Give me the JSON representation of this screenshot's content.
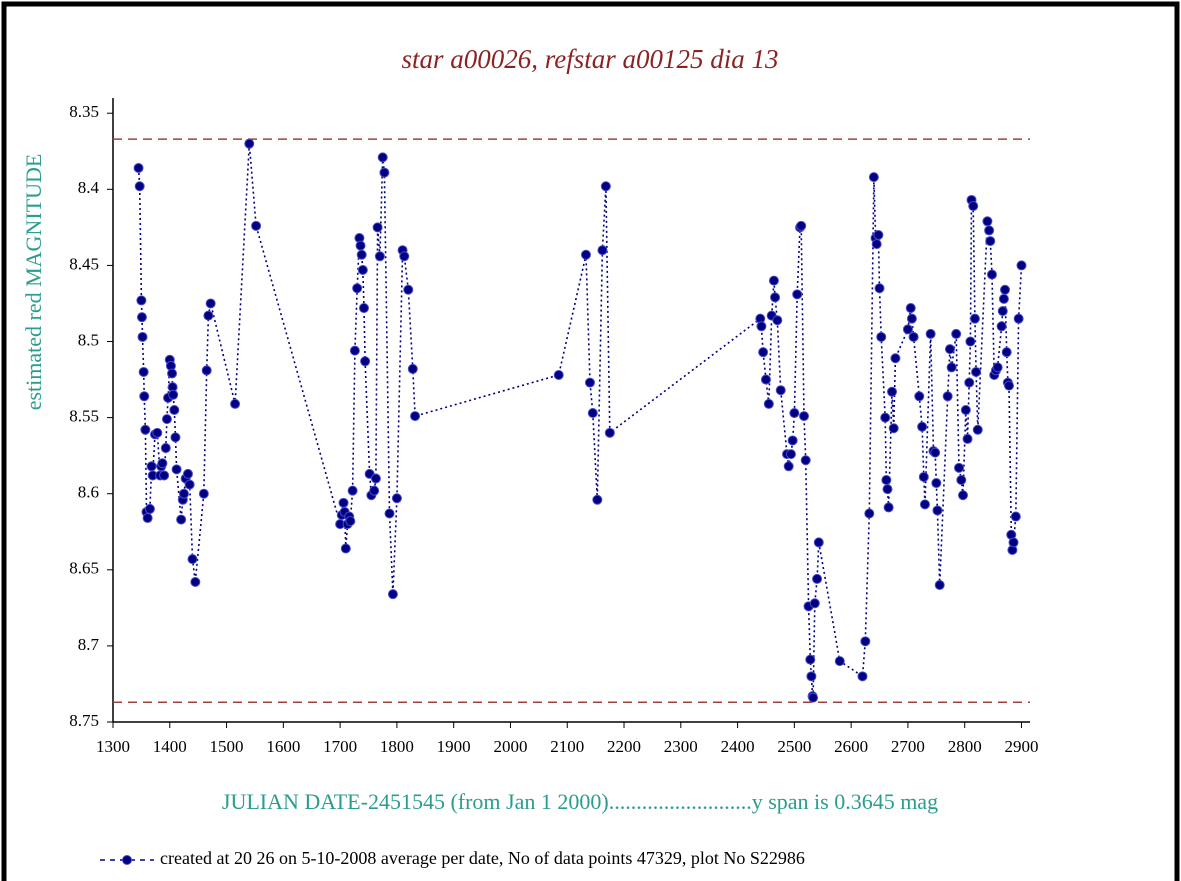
{
  "chart_data": {
    "type": "line",
    "title": "star a00026, refstar a00125  dia  13",
    "ylabel": "estimated red MAGNITUDE",
    "xlabel": "JULIAN DATE-2451545 (from Jan 1 2000)..........................y span is 0.3645 mag",
    "xlim": [
      1300,
      2915
    ],
    "xticks": [
      1300,
      1400,
      1500,
      1600,
      1700,
      1800,
      1900,
      2000,
      2100,
      2200,
      2300,
      2400,
      2500,
      2600,
      2700,
      2800,
      2900
    ],
    "ylim": [
      8.34,
      8.75
    ],
    "yticks": [
      8.35,
      8.4,
      8.45,
      8.5,
      8.55,
      8.6,
      8.65,
      8.7,
      8.75
    ],
    "y_inverted": true,
    "hlines": [
      8.367,
      8.737
    ],
    "hline_color": "#a0403c",
    "x": [
      1345,
      1347,
      1350,
      1351,
      1352,
      1354,
      1355,
      1357,
      1359,
      1361,
      1365,
      1368,
      1370,
      1374,
      1378,
      1383,
      1385,
      1387,
      1390,
      1393,
      1395,
      1397,
      1400,
      1402,
      1404,
      1405,
      1406,
      1408,
      1410,
      1412,
      1420,
      1423,
      1425,
      1428,
      1432,
      1435,
      1440,
      1445,
      1460,
      1465,
      1468,
      1472,
      1515,
      1540,
      1552,
      1700,
      1703,
      1706,
      1708,
      1710,
      1713,
      1716,
      1718,
      1722,
      1726,
      1730,
      1734,
      1736,
      1738,
      1740,
      1742,
      1744,
      1752,
      1755,
      1760,
      1763,
      1766,
      1770,
      1775,
      1778,
      1787,
      1793,
      1800,
      1810,
      1813,
      1820,
      1828,
      1832,
      2085,
      2133,
      2140,
      2145,
      2153,
      2162,
      2168,
      2175,
      2440,
      2442,
      2445,
      2450,
      2455,
      2460,
      2464,
      2466,
      2470,
      2476,
      2487,
      2490,
      2494,
      2497,
      2500,
      2505,
      2510,
      2512,
      2517,
      2520,
      2525,
      2528,
      2530,
      2532,
      2533,
      2536,
      2540,
      2543,
      2580,
      2620,
      2625,
      2632,
      2640,
      2643,
      2645,
      2648,
      2650,
      2653,
      2660,
      2662,
      2664,
      2666,
      2672,
      2675,
      2678,
      2700,
      2705,
      2707,
      2710,
      2720,
      2725,
      2728,
      2730,
      2740,
      2745,
      2748,
      2750,
      2752,
      2756,
      2770,
      2774,
      2777,
      2785,
      2790,
      2794,
      2797,
      2802,
      2805,
      2808,
      2810,
      2812,
      2815,
      2818,
      2820,
      2823,
      2840,
      2843,
      2845,
      2848,
      2852,
      2855,
      2858,
      2865,
      2867,
      2869,
      2871,
      2874,
      2876,
      2878,
      2882,
      2884,
      2886,
      2890,
      2895,
      2900
    ],
    "series": [
      {
        "name": "created at 20 26 on 5-10-2008 average per date, No of data points 47329,  plot No S22986",
        "color": "#000080",
        "values": [
          8.386,
          8.398,
          8.473,
          8.484,
          8.497,
          8.52,
          8.536,
          8.558,
          8.612,
          8.616,
          8.61,
          8.582,
          8.588,
          8.561,
          8.56,
          8.588,
          8.582,
          8.58,
          8.588,
          8.57,
          8.551,
          8.537,
          8.512,
          8.516,
          8.521,
          8.53,
          8.535,
          8.545,
          8.563,
          8.584,
          8.617,
          8.604,
          8.6,
          8.59,
          8.587,
          8.594,
          8.643,
          8.658,
          8.6,
          8.519,
          8.483,
          8.475,
          8.541,
          8.37,
          8.424,
          8.62,
          8.614,
          8.606,
          8.612,
          8.636,
          8.62,
          8.615,
          8.618,
          8.598,
          8.506,
          8.465,
          8.432,
          8.437,
          8.443,
          8.453,
          8.478,
          8.513,
          8.587,
          8.601,
          8.598,
          8.59,
          8.425,
          8.444,
          8.379,
          8.389,
          8.613,
          8.666,
          8.603,
          8.44,
          8.444,
          8.466,
          8.518,
          8.549,
          8.522,
          8.443,
          8.527,
          8.547,
          8.604,
          8.44,
          8.398,
          8.56,
          8.485,
          8.49,
          8.507,
          8.525,
          8.541,
          8.483,
          8.46,
          8.471,
          8.486,
          8.532,
          8.574,
          8.582,
          8.574,
          8.565,
          8.547,
          8.469,
          8.425,
          8.424,
          8.549,
          8.578,
          8.674,
          8.709,
          8.72,
          8.733,
          8.734,
          8.672,
          8.656,
          8.632,
          8.71,
          8.72,
          8.697,
          8.613,
          8.392,
          8.432,
          8.436,
          8.43,
          8.465,
          8.497,
          8.55,
          8.591,
          8.597,
          8.609,
          8.533,
          8.557,
          8.511,
          8.492,
          8.478,
          8.485,
          8.497,
          8.536,
          8.556,
          8.589,
          8.607,
          8.495,
          8.572,
          8.573,
          8.593,
          8.611,
          8.66,
          8.536,
          8.505,
          8.517,
          8.495,
          8.583,
          8.591,
          8.601,
          8.545,
          8.564,
          8.527,
          8.5,
          8.407,
          8.411,
          8.485,
          8.52,
          8.558,
          8.421,
          8.427,
          8.434,
          8.456,
          8.522,
          8.519,
          8.517,
          8.49,
          8.48,
          8.472,
          8.466,
          8.507,
          8.527,
          8.529,
          8.627,
          8.637,
          8.632,
          8.615,
          8.485,
          8.45
        ]
      }
    ]
  }
}
